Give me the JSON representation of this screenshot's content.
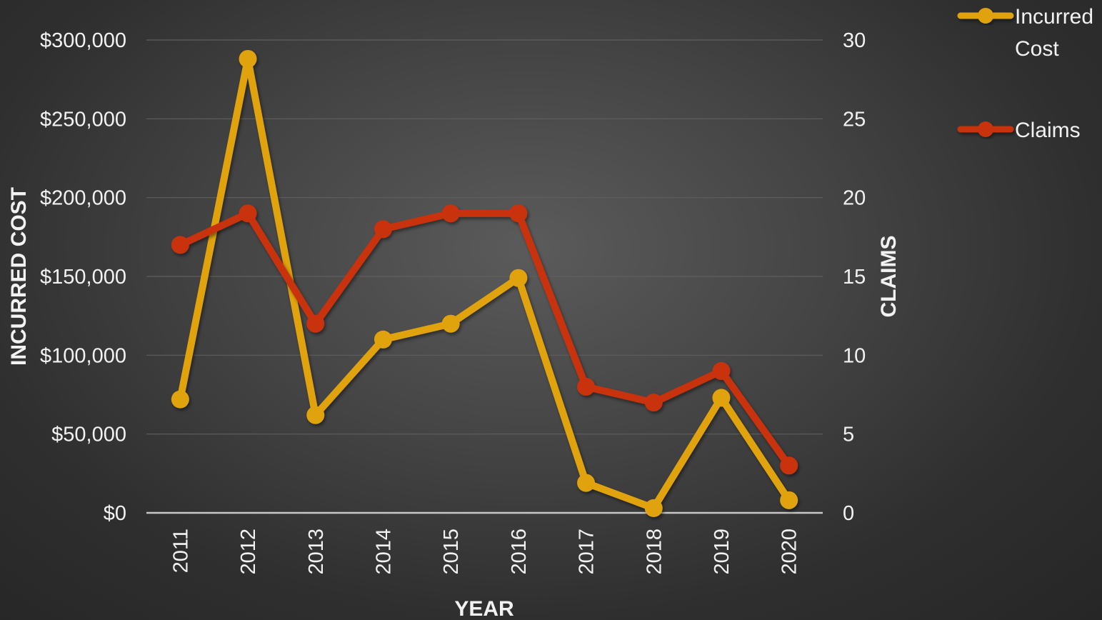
{
  "chart_data": {
    "type": "line",
    "x": [
      "2011",
      "2012",
      "2013",
      "2014",
      "2015",
      "2016",
      "2017",
      "2018",
      "2019",
      "2020"
    ],
    "xlabel": "YEAR",
    "ylabel": "INCURRED COST",
    "y2label": "CLAIMS",
    "ylim": [
      0,
      300000
    ],
    "y2lim": [
      0,
      30
    ],
    "y_ticks": [
      "$0",
      "$50,000",
      "$100,000",
      "$150,000",
      "$200,000",
      "$250,000",
      "$300,000"
    ],
    "y2_ticks": [
      "0",
      "5",
      "10",
      "15",
      "20",
      "25",
      "30"
    ],
    "grid": true,
    "legend_position": "top-right",
    "series": [
      {
        "name": "Incurred Cost",
        "legend_lines": [
          "Incurred",
          "Cost"
        ],
        "axis": "left",
        "color": "#e0a30d",
        "values": [
          72000,
          288000,
          62000,
          110000,
          120000,
          149000,
          19000,
          3000,
          73000,
          8000
        ]
      },
      {
        "name": "Claims",
        "legend_lines": [
          "Claims"
        ],
        "axis": "right",
        "color": "#c8320f",
        "values": [
          17,
          19,
          12,
          18,
          19,
          19,
          8,
          7,
          9,
          3
        ]
      }
    ]
  }
}
